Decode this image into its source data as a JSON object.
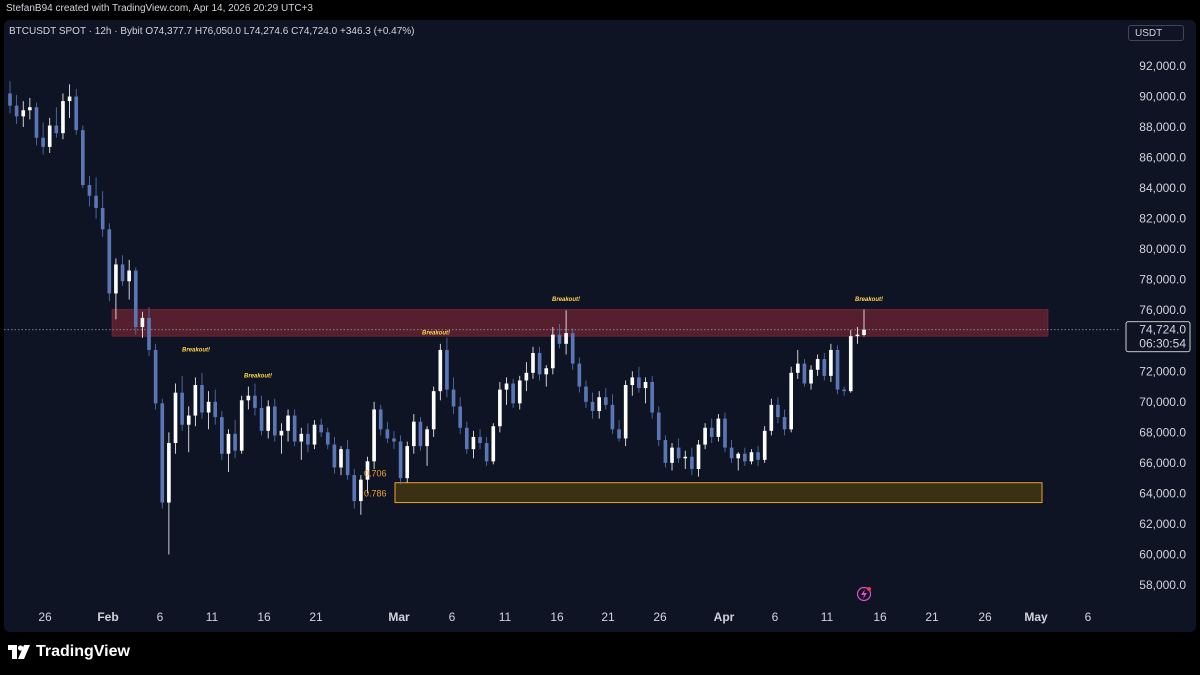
{
  "header": {
    "created_by": "StefanB94 created with TradingView.com, Apr 14, 2026 20:29 UTC+3"
  },
  "symbol": {
    "name": "BTCUSDT SPOT · 12h · Bybit",
    "open": "O74,377.7",
    "high": "H76,050.0",
    "low": "L74,274.6",
    "close": "C74,724.0",
    "change": "+346.3 (+0.47%)"
  },
  "currency": "USDT",
  "price_label": {
    "price": "74,724.0",
    "countdown": "06:30:54"
  },
  "footer": {
    "brand": "TradingView"
  },
  "colors": {
    "background": "#0e1423",
    "up_candle": "#ffffff",
    "down_candle": "#5b76b5",
    "resistance_zone": "#6e2331",
    "support_zone": "#3d3214",
    "support_border": "#f0a030",
    "annotation": "#ffd54a"
  },
  "chart_data": {
    "type": "candlestick",
    "title": "",
    "y_axis": {
      "ticks": [
        "92,000.0",
        "90,000.0",
        "88,000.0",
        "86,000.0",
        "84,000.0",
        "82,000.0",
        "80,000.0",
        "78,000.0",
        "76,000.0",
        "72,000.0",
        "70,000.0",
        "68,000.0",
        "66,000.0",
        "64,000.0",
        "62,000.0",
        "60,000.0",
        "58,000.0"
      ],
      "range": [
        56500,
        94000
      ]
    },
    "x_axis": {
      "ticks": [
        {
          "label": "26",
          "bold": false
        },
        {
          "label": "Feb",
          "bold": true
        },
        {
          "label": "6",
          "bold": false
        },
        {
          "label": "11",
          "bold": false
        },
        {
          "label": "16",
          "bold": false
        },
        {
          "label": "21",
          "bold": false
        },
        {
          "label": "Mar",
          "bold": true
        },
        {
          "label": "6",
          "bold": false
        },
        {
          "label": "11",
          "bold": false
        },
        {
          "label": "16",
          "bold": false
        },
        {
          "label": "21",
          "bold": false
        },
        {
          "label": "26",
          "bold": false
        },
        {
          "label": "Apr",
          "bold": true
        },
        {
          "label": "6",
          "bold": false
        },
        {
          "label": "11",
          "bold": false
        },
        {
          "label": "16",
          "bold": false
        },
        {
          "label": "21",
          "bold": false
        },
        {
          "label": "26",
          "bold": false
        },
        {
          "label": "May",
          "bold": true
        },
        {
          "label": "6",
          "bold": false
        }
      ]
    },
    "current_price": 74724,
    "zones": [
      {
        "name": "resistance",
        "low": 74300,
        "high": 76050
      },
      {
        "name": "support",
        "low": 63400,
        "high": 64700
      }
    ],
    "fib_levels": [
      {
        "label": "0.706",
        "value": 65300
      },
      {
        "label": "0.786",
        "value": 64000
      }
    ],
    "annotations": [
      {
        "text": "Breakout!",
        "price": 73300,
        "date": "Feb 5"
      },
      {
        "text": "Breakout!",
        "price": 71600,
        "date": "Feb 10"
      },
      {
        "text": "Breakout!",
        "price": 74400,
        "date": "Mar 5"
      },
      {
        "text": "Breakout!",
        "price": 76600,
        "date": "Mar 16"
      },
      {
        "text": "Breakout!",
        "price": 76600,
        "date": "Apr 14"
      }
    ],
    "candles": [
      [
        90200,
        91000,
        88900,
        89400
      ],
      [
        89400,
        90100,
        88200,
        88700
      ],
      [
        88700,
        89700,
        88000,
        89100
      ],
      [
        89100,
        89900,
        88500,
        89300
      ],
      [
        89300,
        89600,
        86800,
        87300
      ],
      [
        87300,
        88300,
        86200,
        86700
      ],
      [
        86700,
        88600,
        86300,
        88100
      ],
      [
        88100,
        89300,
        87300,
        87600
      ],
      [
        87600,
        90200,
        87200,
        89700
      ],
      [
        89700,
        90800,
        88600,
        90000
      ],
      [
        90000,
        90500,
        87500,
        87800
      ],
      [
        87800,
        88100,
        84000,
        84200
      ],
      [
        84200,
        84800,
        82800,
        83500
      ],
      [
        83500,
        84700,
        82000,
        82700
      ],
      [
        82700,
        83800,
        80800,
        81300
      ],
      [
        81300,
        81700,
        76600,
        77100
      ],
      [
        77100,
        79400,
        75400,
        79000
      ],
      [
        79000,
        79600,
        77600,
        77900
      ],
      [
        77900,
        79300,
        76700,
        78600
      ],
      [
        78600,
        78800,
        74400,
        74900
      ],
      [
        74900,
        75900,
        74200,
        75500
      ],
      [
        75500,
        76200,
        73000,
        73400
      ],
      [
        73400,
        73800,
        69500,
        69900
      ],
      [
        69900,
        70200,
        63000,
        63400
      ],
      [
        63400,
        68000,
        60000,
        67300
      ],
      [
        67300,
        71200,
        66600,
        70600
      ],
      [
        70600,
        71700,
        68100,
        68500
      ],
      [
        68500,
        69700,
        66700,
        69100
      ],
      [
        69100,
        71600,
        68400,
        71100
      ],
      [
        71100,
        71900,
        68900,
        69300
      ],
      [
        69300,
        70700,
        68200,
        70000
      ],
      [
        70000,
        70800,
        68500,
        69000
      ],
      [
        69000,
        69400,
        66200,
        66600
      ],
      [
        66600,
        68200,
        65400,
        67900
      ],
      [
        67900,
        68800,
        66300,
        66800
      ],
      [
        66800,
        70400,
        66600,
        70100
      ],
      [
        70100,
        71000,
        69500,
        70400
      ],
      [
        70400,
        71200,
        69100,
        69600
      ],
      [
        69600,
        70400,
        67800,
        68100
      ],
      [
        68100,
        70100,
        67600,
        69700
      ],
      [
        69700,
        70200,
        67400,
        67800
      ],
      [
        67800,
        68600,
        66600,
        68100
      ],
      [
        68100,
        69500,
        67400,
        69100
      ],
      [
        69100,
        69500,
        67100,
        67400
      ],
      [
        67400,
        68300,
        66200,
        67900
      ],
      [
        67900,
        68600,
        66700,
        67200
      ],
      [
        67200,
        68800,
        66900,
        68500
      ],
      [
        68500,
        68900,
        67700,
        68000
      ],
      [
        68000,
        68300,
        66900,
        67200
      ],
      [
        67200,
        67700,
        65300,
        65700
      ],
      [
        65700,
        67100,
        65200,
        66900
      ],
      [
        66900,
        67500,
        64900,
        65200
      ],
      [
        65200,
        65600,
        63000,
        63500
      ],
      [
        63500,
        65200,
        62600,
        64900
      ],
      [
        64900,
        66400,
        64000,
        66100
      ],
      [
        66100,
        70000,
        65600,
        69500
      ],
      [
        69500,
        69800,
        67800,
        68200
      ],
      [
        68200,
        68700,
        67300,
        67600
      ],
      [
        67600,
        68100,
        66900,
        67400
      ],
      [
        67400,
        67800,
        64600,
        65000
      ],
      [
        65000,
        67400,
        64700,
        67100
      ],
      [
        67100,
        69200,
        66600,
        68700
      ],
      [
        68700,
        69000,
        66800,
        67100
      ],
      [
        67100,
        68400,
        65800,
        68200
      ],
      [
        68200,
        71000,
        67700,
        70700
      ],
      [
        70700,
        73800,
        70100,
        73400
      ],
      [
        73400,
        74200,
        70300,
        70800
      ],
      [
        70800,
        71600,
        69200,
        69700
      ],
      [
        69700,
        70300,
        67900,
        68300
      ],
      [
        68300,
        68700,
        66600,
        66900
      ],
      [
        66900,
        68100,
        66300,
        67700
      ],
      [
        67700,
        68200,
        66900,
        67300
      ],
      [
        67300,
        67700,
        65800,
        66100
      ],
      [
        66100,
        68600,
        65900,
        68400
      ],
      [
        68400,
        71300,
        68000,
        70800
      ],
      [
        70800,
        71600,
        69800,
        71200
      ],
      [
        71200,
        71500,
        69600,
        69900
      ],
      [
        69900,
        71700,
        69500,
        71400
      ],
      [
        71400,
        72600,
        70700,
        71900
      ],
      [
        71900,
        73600,
        71500,
        73200
      ],
      [
        73200,
        73600,
        71400,
        71800
      ],
      [
        71800,
        72400,
        71000,
        72200
      ],
      [
        72200,
        74900,
        71800,
        74400
      ],
      [
        74400,
        75100,
        73500,
        73800
      ],
      [
        73800,
        76000,
        73100,
        74500
      ],
      [
        74500,
        74800,
        72100,
        72500
      ],
      [
        72500,
        72900,
        70600,
        71000
      ],
      [
        71000,
        71400,
        69600,
        70000
      ],
      [
        70000,
        70600,
        68900,
        69400
      ],
      [
        69400,
        70700,
        68900,
        70300
      ],
      [
        70300,
        70900,
        69500,
        69800
      ],
      [
        69800,
        70500,
        67900,
        68200
      ],
      [
        68200,
        68800,
        67400,
        67600
      ],
      [
        67600,
        71400,
        67100,
        71100
      ],
      [
        71100,
        72000,
        70400,
        71600
      ],
      [
        71600,
        72300,
        70600,
        70900
      ],
      [
        70900,
        71600,
        69900,
        71300
      ],
      [
        71300,
        71700,
        68900,
        69300
      ],
      [
        69300,
        69700,
        67100,
        67500
      ],
      [
        67500,
        67800,
        65700,
        66000
      ],
      [
        66000,
        67300,
        65500,
        67000
      ],
      [
        67000,
        67600,
        66000,
        66300
      ],
      [
        66300,
        66800,
        65600,
        66400
      ],
      [
        66400,
        67000,
        65200,
        65600
      ],
      [
        65600,
        67500,
        65100,
        67200
      ],
      [
        67200,
        68600,
        66900,
        68300
      ],
      [
        68300,
        68900,
        67300,
        67700
      ],
      [
        67700,
        69200,
        67400,
        68900
      ],
      [
        68900,
        69300,
        66700,
        67000
      ],
      [
        67000,
        67500,
        66000,
        66300
      ],
      [
        66300,
        66700,
        65500,
        66600
      ],
      [
        66600,
        67000,
        65800,
        66100
      ],
      [
        66100,
        66900,
        65900,
        66700
      ],
      [
        66700,
        67100,
        65800,
        66200
      ],
      [
        66200,
        68400,
        66000,
        68100
      ],
      [
        68100,
        70200,
        67800,
        69800
      ],
      [
        69800,
        70300,
        68600,
        69000
      ],
      [
        69000,
        69500,
        67800,
        68200
      ],
      [
        68200,
        72300,
        68000,
        71900
      ],
      [
        71900,
        73400,
        71500,
        72500
      ],
      [
        72500,
        72800,
        71000,
        71200
      ],
      [
        71200,
        72400,
        70800,
        72100
      ],
      [
        72100,
        73100,
        71700,
        72800
      ],
      [
        72800,
        73200,
        71400,
        71700
      ],
      [
        71700,
        73800,
        71300,
        73400
      ],
      [
        73400,
        73700,
        70500,
        70800
      ],
      [
        70800,
        71000,
        70400,
        70700
      ],
      [
        70700,
        74700,
        70600,
        74300
      ],
      [
        74300,
        74900,
        73800,
        74400
      ],
      [
        74377.7,
        76050,
        74274.6,
        74724
      ]
    ]
  }
}
